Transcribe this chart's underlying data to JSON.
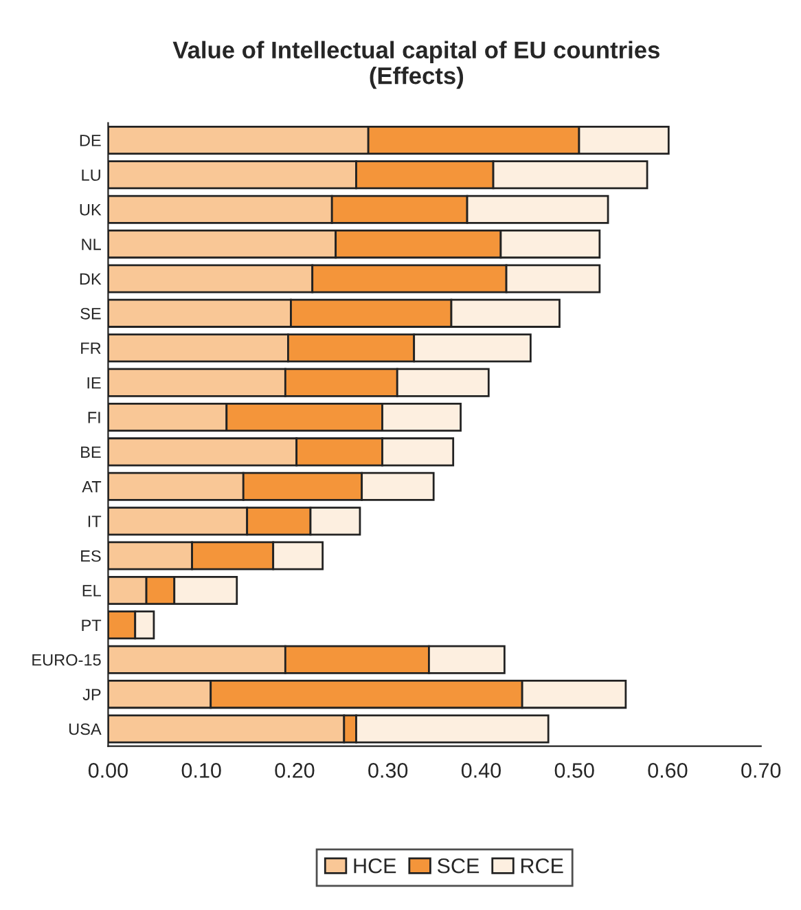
{
  "chart_data": {
    "type": "bar",
    "orientation": "horizontal",
    "stacked": true,
    "title": "Value of Intellectual capital of EU countries\n(Effects)",
    "categories": [
      "DE",
      "LU",
      "UK",
      "NL",
      "DK",
      "SE",
      "FR",
      "IE",
      "FI",
      "BE",
      "AT",
      "IT",
      "ES",
      "EL",
      "PT",
      "EURO-15",
      "JP",
      "USA"
    ],
    "series": [
      {
        "name": "HCE",
        "color": "#f9c796",
        "values": [
          0.279,
          0.266,
          0.24,
          0.244,
          0.219,
          0.196,
          0.193,
          0.19,
          0.127,
          0.202,
          0.145,
          0.149,
          0.09,
          0.041,
          0,
          0.19,
          0.11,
          0.253
        ]
      },
      {
        "name": "SCE",
        "color": "#f4953a",
        "values": [
          0.226,
          0.147,
          0.145,
          0.177,
          0.208,
          0.172,
          0.135,
          0.12,
          0.167,
          0.092,
          0.127,
          0.068,
          0.087,
          0.03,
          0.029,
          0.154,
          0.334,
          0.013
        ]
      },
      {
        "name": "RCE",
        "color": "#fdefe0",
        "values": [
          0.096,
          0.165,
          0.151,
          0.106,
          0.1,
          0.116,
          0.125,
          0.098,
          0.084,
          0.076,
          0.077,
          0.053,
          0.053,
          0.067,
          0.02,
          0.081,
          0.111,
          0.206
        ]
      }
    ],
    "xlim": [
      0,
      0.7
    ],
    "xticks": [
      {
        "value": 0,
        "label": "0.00"
      },
      {
        "value": 0.1,
        "label": "0.10"
      },
      {
        "value": 0.2,
        "label": "0.20"
      },
      {
        "value": 0.3,
        "label": "0.30"
      },
      {
        "value": 0.4,
        "label": "0.40"
      },
      {
        "value": 0.5,
        "label": "0.50"
      },
      {
        "value": 0.6,
        "label": "0.60"
      },
      {
        "value": 0.7,
        "label": "0.70"
      }
    ],
    "grid": false,
    "legend": "bottom"
  }
}
